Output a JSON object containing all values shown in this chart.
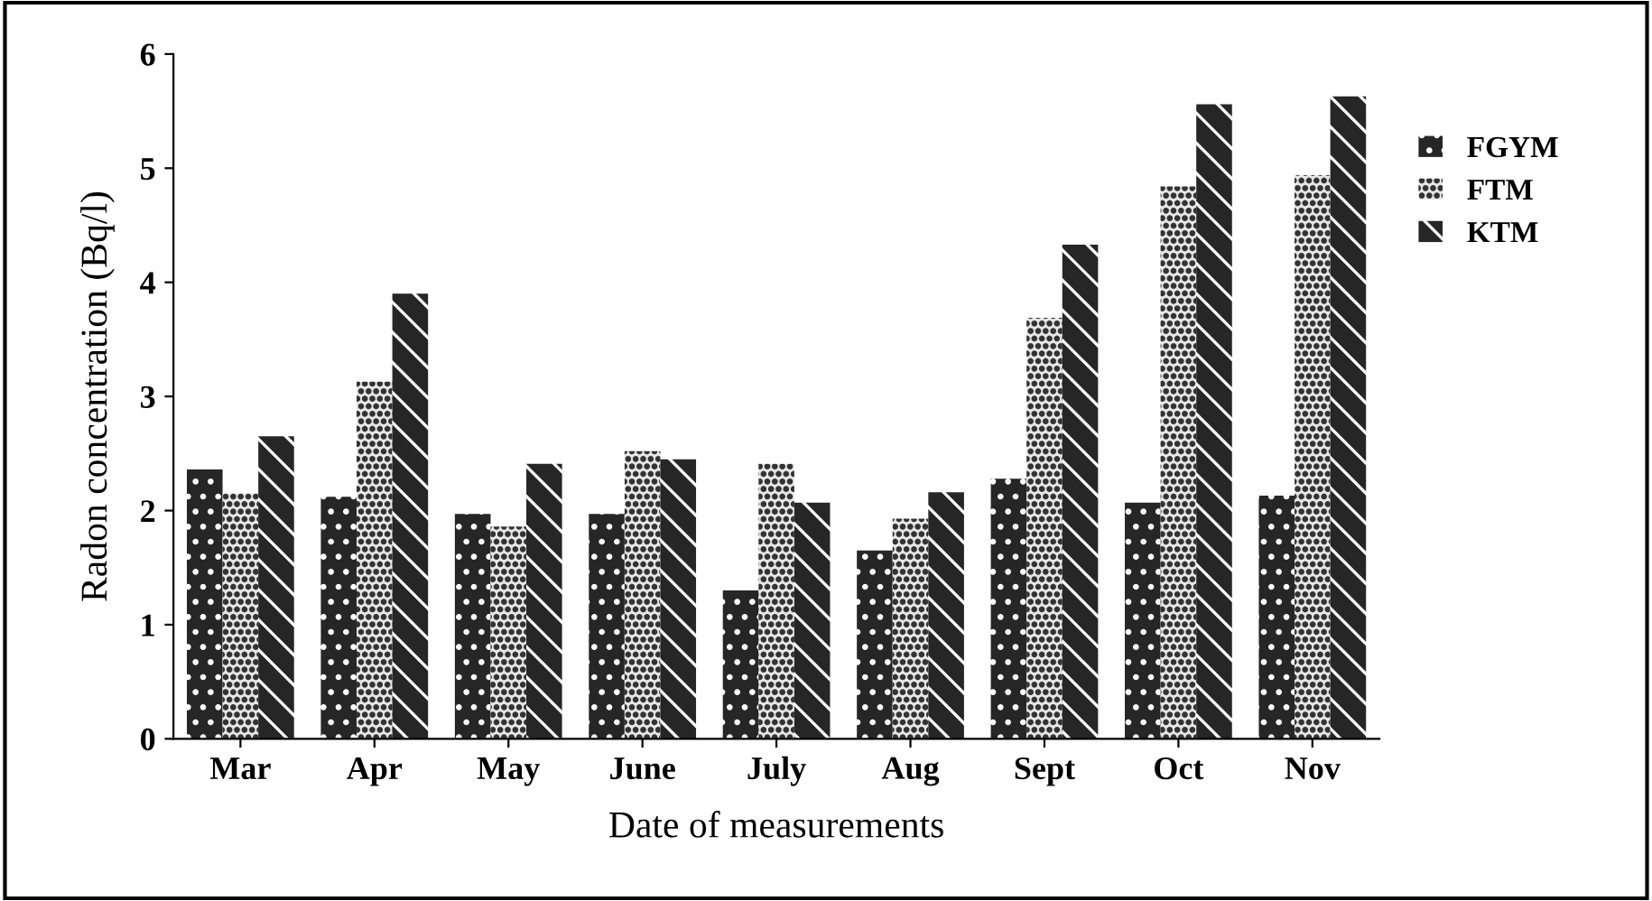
{
  "chart_data": {
    "type": "bar",
    "xlabel": "Date of measurements",
    "ylabel": "Radon concentration (Bq/l)",
    "categories": [
      "Mar",
      "Apr",
      "May",
      "June",
      "July",
      "Aug",
      "Sept",
      "Oct",
      "Nov"
    ],
    "series": [
      {
        "name": "FGYM",
        "color": "#262626",
        "values": [
          2.36,
          2.12,
          1.97,
          1.97,
          1.3,
          1.65,
          2.28,
          2.07,
          2.13
        ]
      },
      {
        "name": "FTM",
        "color": "#e6e6e6",
        "values": [
          2.15,
          3.13,
          1.86,
          2.52,
          2.41,
          1.93,
          3.69,
          4.84,
          4.94
        ]
      },
      {
        "name": "KTM",
        "color": "#262626",
        "values": [
          2.65,
          3.9,
          2.41,
          2.45,
          2.07,
          2.16,
          4.33,
          5.56,
          5.63
        ]
      }
    ],
    "ylim": [
      0,
      6
    ],
    "yticks": [
      0,
      1,
      2,
      3,
      4,
      5,
      6
    ],
    "grid": false,
    "legend": "right"
  }
}
